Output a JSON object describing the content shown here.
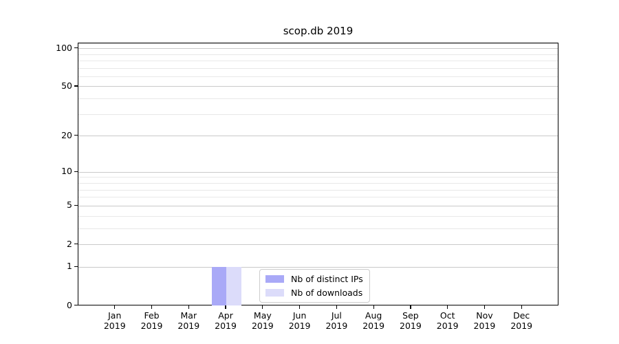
{
  "chart_data": {
    "type": "bar",
    "title": "scop.db 2019",
    "x_tick_months": [
      "Jan",
      "Feb",
      "Mar",
      "Apr",
      "May",
      "Jun",
      "Jul",
      "Aug",
      "Sep",
      "Oct",
      "Nov",
      "Dec"
    ],
    "x_tick_year": "2019",
    "series": [
      {
        "name": "Nb of distinct IPs",
        "color": "#a9a9f7",
        "values": [
          0,
          0,
          0,
          1,
          0,
          0,
          0,
          0,
          0,
          0,
          0,
          0
        ]
      },
      {
        "name": "Nb of downloads",
        "color": "#dcdcfa",
        "values": [
          0,
          0,
          0,
          1,
          0,
          0,
          0,
          0,
          0,
          0,
          0,
          0
        ]
      }
    ],
    "y_scale": "log1p",
    "y_major_ticks": [
      0,
      1,
      2,
      5,
      10,
      20,
      50,
      100
    ],
    "y_minor_ticks": [
      3,
      4,
      6,
      7,
      8,
      9,
      30,
      40,
      60,
      70,
      80,
      90,
      110
    ],
    "ylim": [
      0,
      110
    ],
    "grid": "horizontal",
    "legend_position": "lower center",
    "colors": {
      "axis": "#000000",
      "major_grid": "#c9c9c9",
      "minor_grid": "#e8e8e8",
      "background": "#ffffff"
    }
  }
}
